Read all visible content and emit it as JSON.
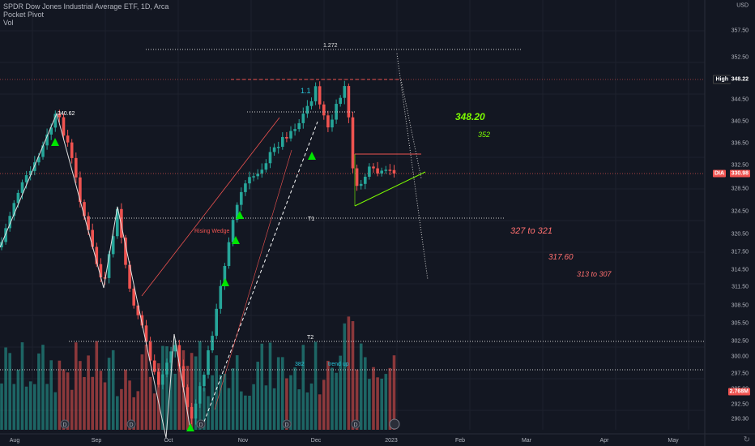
{
  "header": {
    "title": "SPDR Dow Jones Industrial Average ETF, 1D, Arca",
    "indicator": "Pocket Pivot",
    "volume": "Vol"
  },
  "currency": "USD",
  "price_axis": {
    "ticks": [
      "357.50",
      "352.50",
      "344.50",
      "340.50",
      "336.50",
      "332.50",
      "328.50",
      "324.50",
      "320.50",
      "317.50",
      "314.50",
      "311.50",
      "308.50",
      "305.50",
      "302.50",
      "300.00",
      "297.50",
      "295.00",
      "292.50",
      "290.30"
    ],
    "labels_high": "High",
    "high_value": "348.22",
    "dia_label": "DIA",
    "dia_value": "330.98",
    "vol_value": "2.768M"
  },
  "time_axis": [
    "Aug",
    "Sep",
    "Oct",
    "Nov",
    "Dec",
    "2023",
    "Feb",
    "Mar",
    "Apr",
    "May"
  ],
  "annotations": {
    "fib_1272": "1.272",
    "fib_11": "1.1",
    "high_point": "340.62",
    "t1": "T1",
    "t2": "T2",
    "rising_wedge": "Rising Wedge",
    "v382": "382",
    "trend_up": "trend up",
    "target_348": "348.20",
    "target_352": "352",
    "target_327": "327 to 321",
    "target_317": "317.60",
    "target_313": "313 to 307"
  },
  "colors": {
    "background": "#131722",
    "up": "#26a69a",
    "down": "#ef5350",
    "high_tag": "#131722",
    "dia_tag": "#ef5350",
    "green_text": "#7cfc00",
    "red_text": "#ff6f6f",
    "pivot": "#00e600"
  },
  "icons": {
    "dividend": "dividend-marker-icon",
    "gear": "lightning-icon"
  }
}
